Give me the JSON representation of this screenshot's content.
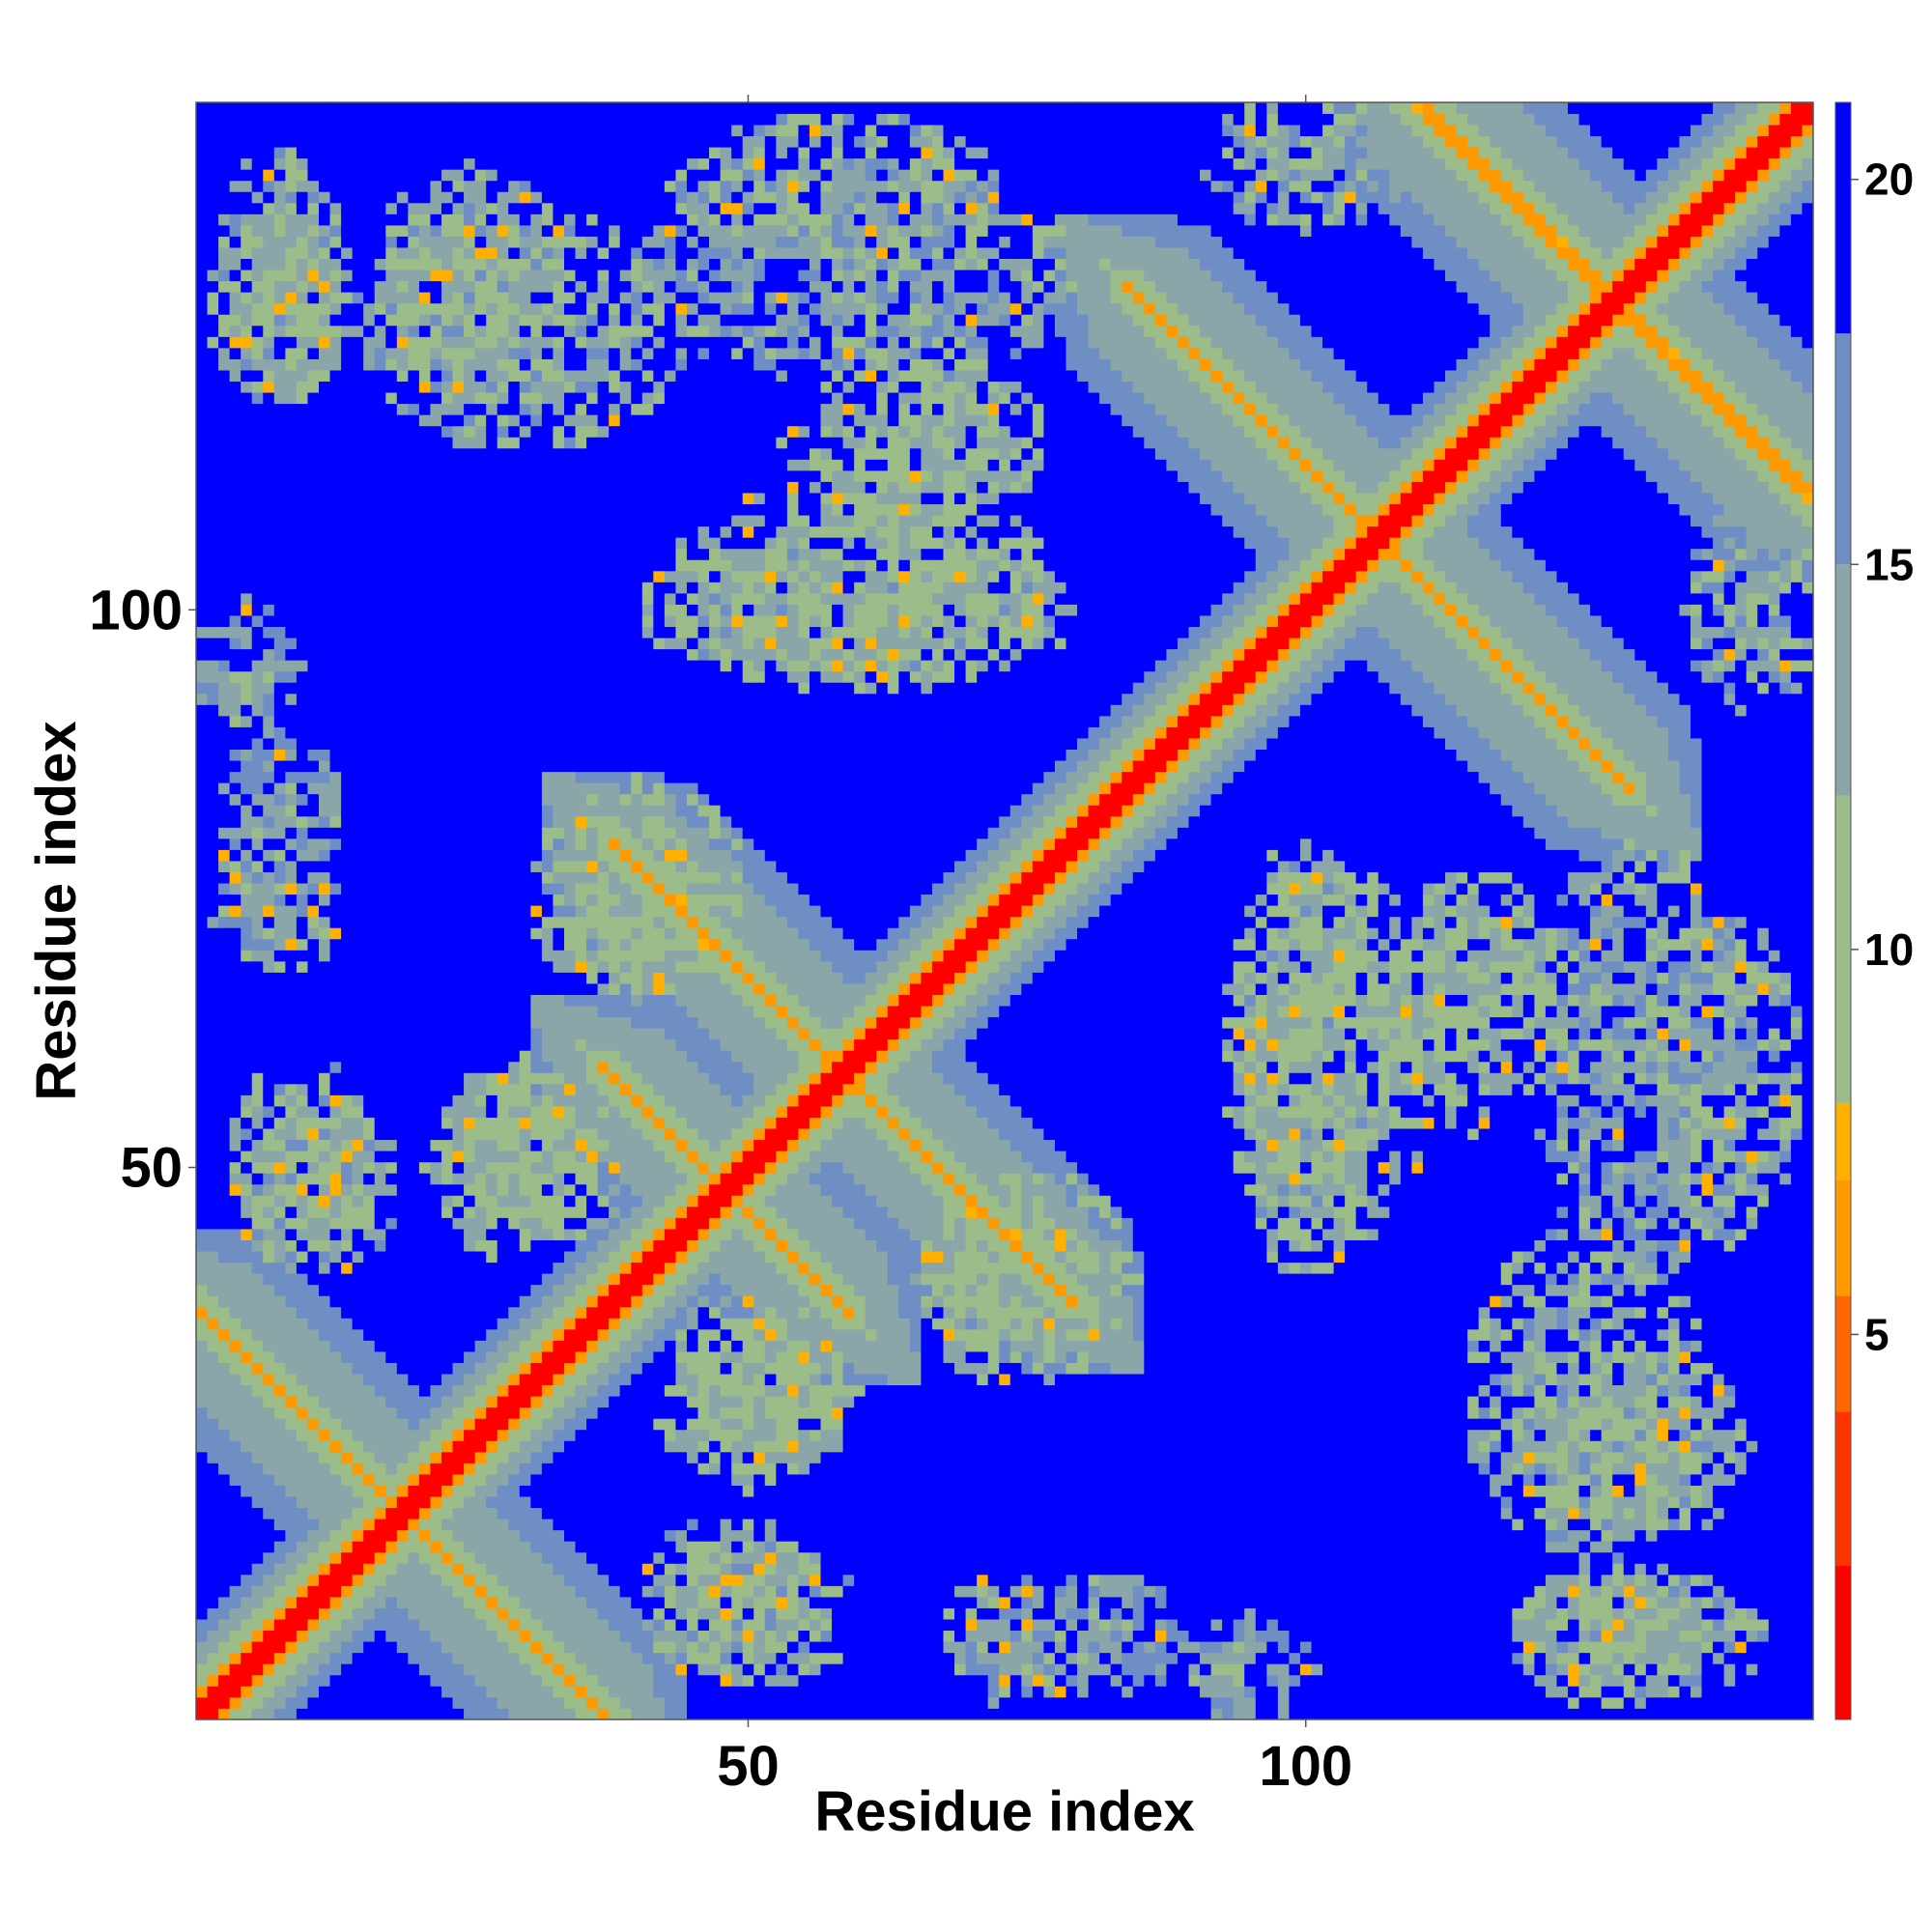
{
  "chart_data": {
    "type": "heatmap",
    "title": "",
    "xlabel": "Residue index",
    "ylabel": "Residue index",
    "n_residues": 145,
    "xlim": [
      1,
      145
    ],
    "ylim": [
      1,
      145
    ],
    "x_ticks": [
      50,
      100
    ],
    "y_ticks": [
      50,
      100
    ],
    "colorbar": {
      "label": "",
      "range": [
        0,
        21
      ],
      "ticks": [
        5,
        10,
        15,
        20
      ],
      "colors": [
        "#ff0000",
        "#ff3300",
        "#ff6600",
        "#ff9900",
        "#ffb000",
        "#9cbc8a",
        "#8aa6a8",
        "#6f8fc4",
        "#0000ff"
      ],
      "thresholds": [
        2,
        4,
        5.5,
        7,
        8,
        12,
        15,
        18
      ]
    },
    "background_value": 21,
    "description_source": "distance map rendered from feature list below",
    "features": {
      "main_diagonal": {
        "from": 1,
        "to": 145,
        "value": 0.5,
        "halo": [
          [
            1,
            3
          ],
          [
            2,
            6
          ],
          [
            4,
            10
          ],
          [
            6,
            14
          ],
          [
            8,
            17
          ]
        ]
      },
      "antiparallel_bands": [
        {
          "start": [
            1,
            37
          ],
          "end": [
            37,
            1
          ],
          "value": 5.5
        },
        {
          "start": [
            38,
            58
          ],
          "end": [
            58,
            38
          ],
          "value": 6.5
        },
        {
          "start": [
            39,
            78
          ],
          "end": [
            77,
            40
          ],
          "value": 5.5
        },
        {
          "start": [
            85,
            128
          ],
          "end": [
            128,
            85
          ],
          "value": 5.5
        },
        {
          "start": [
            110,
            145
          ],
          "end": [
            145,
            111
          ],
          "value": 6.0
        }
      ],
      "contact_regions": [
        {
          "center": [
            8,
            128
          ],
          "size": [
            14,
            18
          ],
          "value": 13
        },
        {
          "center": [
            30,
            125
          ],
          "size": [
            30,
            22
          ],
          "value": 13
        },
        {
          "center": [
            60,
            130
          ],
          "size": [
            40,
            20
          ],
          "value": 14
        },
        {
          "center": [
            60,
            102
          ],
          "size": [
            35,
            20
          ],
          "value": 12
        },
        {
          "center": [
            40,
            75
          ],
          "size": [
            20,
            20
          ],
          "value": 12
        },
        {
          "center": [
            5,
            95
          ],
          "size": [
            10,
            12
          ],
          "value": 14
        },
        {
          "center": [
            8,
            72
          ],
          "size": [
            12,
            10
          ],
          "value": 14
        },
        {
          "center": [
            12,
            48
          ],
          "size": [
            14,
            16
          ],
          "value": 14
        },
        {
          "center": [
            30,
            50
          ],
          "size": [
            18,
            18
          ],
          "value": 12
        },
        {
          "center": [
            52,
            30
          ],
          "size": [
            16,
            16
          ],
          "value": 12
        },
        {
          "center": [
            72,
            40
          ],
          "size": [
            14,
            14
          ],
          "value": 12
        },
        {
          "center": [
            50,
            10
          ],
          "size": [
            20,
            14
          ],
          "value": 13
        },
        {
          "center": [
            80,
            8
          ],
          "size": [
            20,
            12
          ],
          "value": 14
        },
        {
          "center": [
            100,
            60
          ],
          "size": [
            14,
            40
          ],
          "value": 13
        },
        {
          "center": [
            115,
            65
          ],
          "size": [
            18,
            24
          ],
          "value": 12
        },
        {
          "center": [
            138,
            58
          ],
          "size": [
            14,
            30
          ],
          "value": 13
        },
        {
          "center": [
            130,
            25
          ],
          "size": [
            20,
            18
          ],
          "value": 13
        },
        {
          "center": [
            130,
            8
          ],
          "size": [
            24,
            12
          ],
          "value": 13
        },
        {
          "center": [
            140,
            100
          ],
          "size": [
            12,
            20
          ],
          "value": 13
        }
      ]
    }
  }
}
